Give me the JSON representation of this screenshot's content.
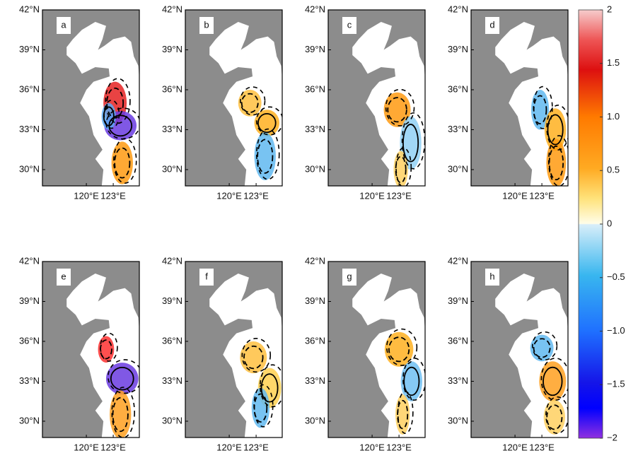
{
  "panels": [
    {
      "label": "a"
    },
    {
      "label": "b"
    },
    {
      "label": "c"
    },
    {
      "label": "d"
    },
    {
      "label": "e"
    },
    {
      "label": "f"
    },
    {
      "label": "g"
    },
    {
      "label": "h"
    }
  ],
  "latitude_ticks": [
    {
      "value": 42,
      "label": "42°N"
    },
    {
      "value": 39,
      "label": "39°N"
    },
    {
      "value": 36,
      "label": "36°N"
    },
    {
      "value": 33,
      "label": "33°N"
    },
    {
      "value": 30,
      "label": "30°N"
    }
  ],
  "longitude_ticks": [
    {
      "value": 120,
      "label": "120°E"
    },
    {
      "value": 123,
      "label": "123°E"
    }
  ],
  "colorbar": {
    "lim": [
      -2,
      2
    ],
    "ticks": [
      2,
      1.5,
      {
        "value": 1,
        "label": "1.0"
      },
      {
        "value": 0.5,
        "label": "0.5"
      },
      0,
      {
        "value": -0.5,
        "label": "−0.5"
      },
      {
        "value": -1,
        "label": "−1.0"
      },
      {
        "value": -1.5,
        "label": "−1.5"
      },
      {
        "value": -2,
        "label": "−2"
      }
    ]
  }
}
